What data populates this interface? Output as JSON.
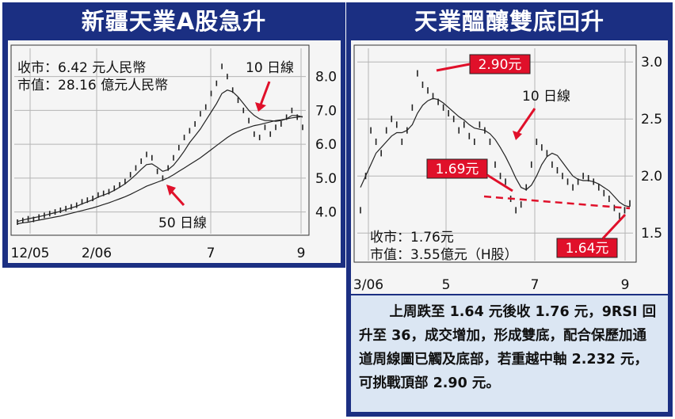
{
  "left": {
    "title": "新疆天業A股急升",
    "info": {
      "line1": "收市：6.42 元人民幣",
      "line2": "市值：28.16 億元人民幣"
    },
    "ma_label_10": "10 日線",
    "ma_label_50": "50 日線"
  },
  "right": {
    "title": "天業醞釀雙底回升",
    "info": {
      "line1": "收市：1.76元",
      "line2": "市值：3.55億元（H股）"
    },
    "ma_label_10": "10 日線",
    "callout_high": "2.90元",
    "callout_low1": "1.69元",
    "callout_low2": "1.64元",
    "comment": "上周跌至 1.64 元後收 1.76 元，9RSI 回升至 36，成交增加，形成雙底，配合保歷加通道周線圖已觸及底部，若重越中軸 2.232 元，可挑戰頂部 2.90 元。"
  },
  "colors": {
    "panel": "#1b2f82",
    "accent": "#e0102a",
    "comment_bg": "#dbe6f3"
  },
  "chart_data": [
    {
      "type": "line",
      "title": "新疆天業A股急升",
      "x_ticks": [
        "12/05",
        "2/06",
        "7",
        "9"
      ],
      "y_ticks": [
        4.0,
        5.0,
        6.0,
        7.0,
        8.0
      ],
      "ylim": [
        3.5,
        8.6
      ],
      "series": [
        {
          "name": "",
          "values": [
            3.7,
            3.75,
            3.8,
            3.78,
            3.85,
            3.9,
            3.95,
            4.0,
            4.05,
            4.1,
            4.15,
            4.2,
            4.3,
            4.35,
            4.4,
            4.5,
            4.55,
            4.6,
            4.7,
            4.8,
            4.9,
            5.1,
            5.3,
            5.5,
            5.7,
            5.6,
            5.2,
            5.0,
            5.3,
            5.6,
            5.9,
            6.2,
            6.4,
            6.6,
            6.9,
            7.1,
            7.5,
            7.8,
            8.3,
            8.0,
            7.6,
            7.3,
            7.0,
            6.7,
            6.3,
            6.2,
            6.5,
            6.3,
            6.5,
            6.6,
            6.8,
            7.0,
            6.8,
            6.5
          ]
        },
        {
          "name": "10 日線",
          "values": [
            3.72,
            3.76,
            3.8,
            3.83,
            3.86,
            3.9,
            3.94,
            3.98,
            4.02,
            4.07,
            4.12,
            4.17,
            4.24,
            4.3,
            4.36,
            4.44,
            4.5,
            4.56,
            4.64,
            4.73,
            4.83,
            4.96,
            5.1,
            5.26,
            5.4,
            5.42,
            5.32,
            5.2,
            5.25,
            5.38,
            5.58,
            5.8,
            6.05,
            6.25,
            6.45,
            6.7,
            6.95,
            7.2,
            7.5,
            7.6,
            7.55,
            7.4,
            7.2,
            7.0,
            6.85,
            6.75,
            6.7,
            6.7,
            6.68,
            6.7,
            6.75,
            6.85,
            6.85,
            6.8
          ]
        },
        {
          "name": "50 日線",
          "values": [
            3.65,
            3.68,
            3.7,
            3.73,
            3.76,
            3.79,
            3.82,
            3.85,
            3.88,
            3.92,
            3.96,
            4.0,
            4.04,
            4.08,
            4.12,
            4.17,
            4.22,
            4.27,
            4.33,
            4.39,
            4.45,
            4.52,
            4.6,
            4.68,
            4.76,
            4.82,
            4.88,
            4.94,
            5.01,
            5.1,
            5.2,
            5.3,
            5.4,
            5.5,
            5.6,
            5.72,
            5.84,
            5.96,
            6.08,
            6.2,
            6.3,
            6.38,
            6.45,
            6.5,
            6.55,
            6.58,
            6.62,
            6.66,
            6.7,
            6.72,
            6.75,
            6.78,
            6.8,
            6.82
          ]
        }
      ]
    },
    {
      "type": "line",
      "title": "天業醞釀雙底回升",
      "x_ticks": [
        "3/06",
        "5",
        "7",
        "9"
      ],
      "y_ticks": [
        1.5,
        2.0,
        2.5,
        3.0
      ],
      "ylim": [
        1.3,
        3.05
      ],
      "series": [
        {
          "name": "",
          "values": [
            1.7,
            2.0,
            2.4,
            2.3,
            2.2,
            2.4,
            2.5,
            2.45,
            2.3,
            2.4,
            2.6,
            2.9,
            2.8,
            2.75,
            2.7,
            2.65,
            2.6,
            2.55,
            2.5,
            2.4,
            2.45,
            2.35,
            2.3,
            2.45,
            2.4,
            2.3,
            2.1,
            2.0,
            1.95,
            1.8,
            1.7,
            1.75,
            1.9,
            2.1,
            2.3,
            2.25,
            2.2,
            2.1,
            2.05,
            2.0,
            1.95,
            1.9,
            1.95,
            2.0,
            1.98,
            1.95,
            1.9,
            1.85,
            1.8,
            1.72,
            1.65,
            1.7,
            1.76
          ]
        },
        {
          "name": "10 日線",
          "values": [
            1.9,
            2.0,
            2.1,
            2.2,
            2.25,
            2.3,
            2.35,
            2.38,
            2.38,
            2.4,
            2.45,
            2.55,
            2.62,
            2.66,
            2.68,
            2.67,
            2.64,
            2.6,
            2.56,
            2.52,
            2.49,
            2.45,
            2.42,
            2.41,
            2.4,
            2.37,
            2.32,
            2.25,
            2.17,
            2.08,
            1.98,
            1.9,
            1.88,
            1.92,
            2.0,
            2.1,
            2.17,
            2.2,
            2.18,
            2.12,
            2.06,
            2.0,
            1.97,
            1.96,
            1.96,
            1.95,
            1.93,
            1.9,
            1.87,
            1.82,
            1.77,
            1.74,
            1.73
          ]
        }
      ],
      "annotations": [
        "2.90元",
        "1.69元",
        "1.64元"
      ]
    }
  ]
}
